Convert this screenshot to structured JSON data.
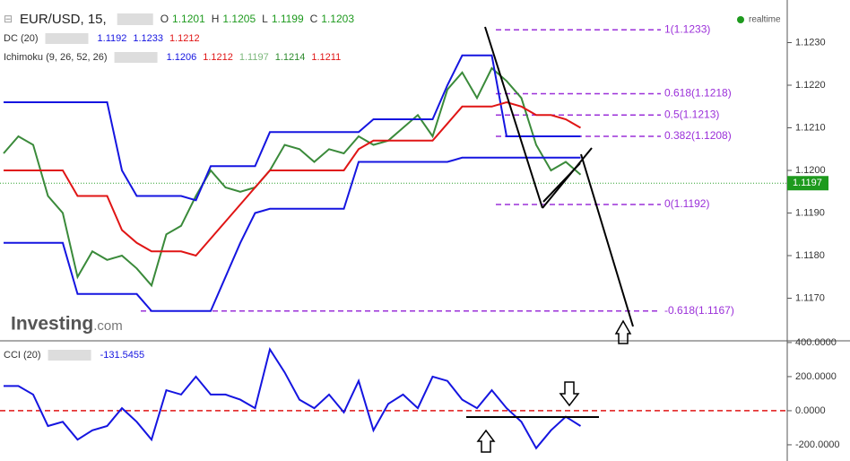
{
  "chart_data": [
    {
      "type": "line",
      "symbol": "EUR/USD, 15,",
      "ohlc_labels": [
        "O",
        "H",
        "L",
        "C"
      ],
      "ohlc": [
        1.1201,
        1.1205,
        1.1199,
        1.1203
      ],
      "indicators": [
        {
          "label": "DC (20)",
          "values": [
            1.1192,
            1.1233,
            1.1212
          ],
          "colors": [
            "#1515e0",
            "#1515e0",
            "#e01515"
          ]
        },
        {
          "label": "Ichimoku (9, 26, 52, 26)",
          "values": [
            1.1206,
            1.1212,
            1.1197,
            1.1214,
            1.1211
          ],
          "colors": [
            "#1515e0",
            "#e01515",
            "#7cb87c",
            "#2e8b2e",
            "#e01515"
          ]
        }
      ],
      "status": "realtime",
      "logo": [
        "Investing",
        ".com"
      ],
      "last_price": 1.1197,
      "ylim": [
        1.116,
        1.124
      ],
      "yticks": [
        {
          "value": 1.117,
          "label": "1.1170"
        },
        {
          "value": 1.118,
          "label": "1.1180"
        },
        {
          "value": 1.119,
          "label": "1.1190"
        },
        {
          "value": 1.12,
          "label": "1.1200"
        },
        {
          "value": 1.121,
          "label": "1.1210"
        },
        {
          "value": 1.122,
          "label": "1.1220"
        },
        {
          "value": 1.123,
          "label": "1.1230"
        }
      ],
      "levels": [
        {
          "value": 1.1233,
          "label": "1(1.1233)"
        },
        {
          "value": 1.1218,
          "label": "0.618(1.1218)"
        },
        {
          "value": 1.1213,
          "label": "0.5(1.1213)"
        },
        {
          "value": 1.1208,
          "label": "0.382(1.1208)"
        },
        {
          "value": 1.1192,
          "label": "0(1.1192)"
        },
        {
          "value": 1.1167,
          "label": "-0.618(1.1167)"
        }
      ],
      "series": [
        {
          "color": "#3a8a3a",
          "values": [
            1.1204,
            1.1208,
            1.1206,
            1.1194,
            1.119,
            1.1175,
            1.1181,
            1.1179,
            1.118,
            1.1177,
            1.1173,
            1.1185,
            1.1187,
            1.1194,
            1.12,
            1.1196,
            1.1195,
            1.1196,
            1.12,
            1.1206,
            1.1205,
            1.1202,
            1.1205,
            1.1204,
            1.1208,
            1.1206,
            1.1207,
            1.121,
            1.1213,
            1.1208,
            1.1219,
            1.1223,
            1.1217,
            1.1224,
            1.1221,
            1.1217,
            1.1206,
            1.12,
            1.1202,
            1.1199
          ]
        },
        {
          "color": "#1515e0",
          "values": [
            1.1216,
            1.1216,
            1.1216,
            1.1216,
            1.1216,
            1.1216,
            1.1216,
            1.1216,
            1.12,
            1.1194,
            1.1194,
            1.1194,
            1.1194,
            1.1193,
            1.1201,
            1.1201,
            1.1201,
            1.1201,
            1.1209,
            1.1209,
            1.1209,
            1.1209,
            1.1209,
            1.1209,
            1.1209,
            1.1212,
            1.1212,
            1.1212,
            1.1212,
            1.1212,
            1.122,
            1.1227,
            1.1227,
            1.1227,
            1.1208,
            1.1208,
            1.1208,
            1.1208,
            1.1208,
            1.1208
          ]
        },
        {
          "color": "#1515e0",
          "values": [
            1.1183,
            1.1183,
            1.1183,
            1.1183,
            1.1183,
            1.1171,
            1.1171,
            1.1171,
            1.1171,
            1.1171,
            1.1167,
            1.1167,
            1.1167,
            1.1167,
            1.1167,
            1.1175,
            1.1183,
            1.119,
            1.1191,
            1.1191,
            1.1191,
            1.1191,
            1.1191,
            1.1191,
            1.1202,
            1.1202,
            1.1202,
            1.1202,
            1.1202,
            1.1202,
            1.1202,
            1.1203,
            1.1203,
            1.1203,
            1.1203,
            1.1203,
            1.1203,
            1.1203,
            1.1203,
            1.1203
          ]
        },
        {
          "color": "#e01515",
          "values": [
            1.12,
            1.12,
            1.12,
            1.12,
            1.12,
            1.1194,
            1.1194,
            1.1194,
            1.1186,
            1.1183,
            1.1181,
            1.1181,
            1.1181,
            1.118,
            1.1184,
            1.1188,
            1.1192,
            1.1196,
            1.12,
            1.12,
            1.12,
            1.12,
            1.12,
            1.12,
            1.1205,
            1.1207,
            1.1207,
            1.1207,
            1.1207,
            1.1207,
            1.1211,
            1.1215,
            1.1215,
            1.1215,
            1.1216,
            1.1215,
            1.1213,
            1.1213,
            1.1212,
            1.121
          ]
        }
      ]
    },
    {
      "type": "line",
      "label": "CCI (20)",
      "value": -131.5455,
      "ylim": [
        -295,
        410
      ],
      "yticks": [
        {
          "value": -200,
          "label": "-200.0000"
        },
        {
          "value": 0,
          "label": "0.0000"
        },
        {
          "value": 200,
          "label": "200.0000"
        },
        {
          "value": 400,
          "label": "400.0000"
        }
      ],
      "hline": 0,
      "series": [
        {
          "color": "#1515e0",
          "values": [
            145,
            145,
            95,
            -90,
            -65,
            -170,
            -115,
            -90,
            15,
            -65,
            -170,
            120,
            95,
            200,
            95,
            95,
            65,
            15,
            360,
            225,
            65,
            15,
            95,
            -10,
            175,
            -115,
            40,
            95,
            15,
            200,
            175,
            65,
            15,
            120,
            15,
            -65,
            -220,
            -115,
            -35,
            -90
          ]
        }
      ]
    }
  ]
}
